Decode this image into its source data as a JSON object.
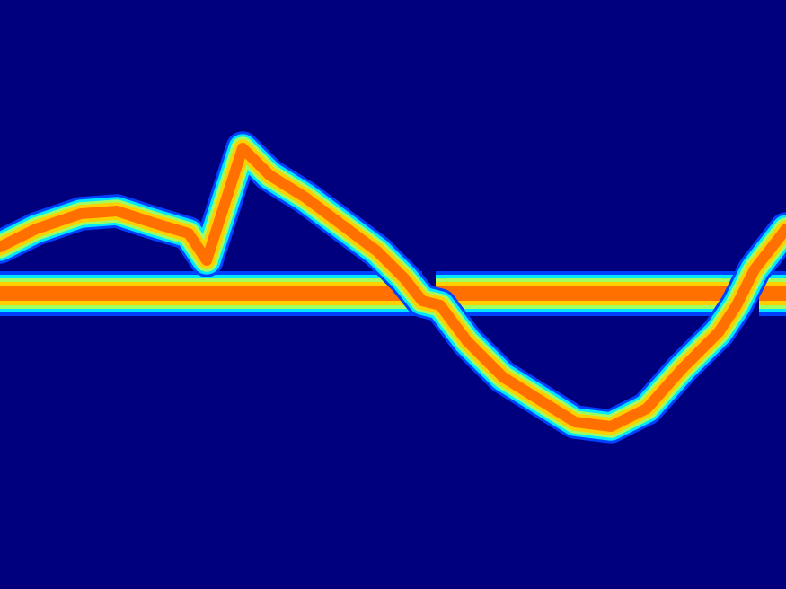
{
  "chart_data": {
    "type": "heatmap",
    "tick_labels": false,
    "xlim": [
      0,
      875
    ],
    "ylim": [
      656,
      0
    ],
    "curve": {
      "x": [
        0,
        40,
        90,
        130,
        170,
        210,
        230,
        270,
        300,
        340,
        380,
        420,
        450,
        470,
        490,
        520,
        560,
        600,
        640,
        680,
        720,
        760,
        800,
        820,
        840,
        875
      ],
      "y": [
        275,
        255,
        238,
        235,
        248,
        260,
        290,
        165,
        195,
        220,
        250,
        280,
        310,
        335,
        340,
        380,
        420,
        445,
        470,
        475,
        455,
        410,
        370,
        340,
        300,
        255
      ]
    },
    "band": {
      "x": [
        0,
        470,
        478,
        485,
        835,
        840,
        845,
        875
      ],
      "y": [
        327,
        327,
        null,
        327,
        327,
        null,
        327,
        327
      ]
    }
  }
}
